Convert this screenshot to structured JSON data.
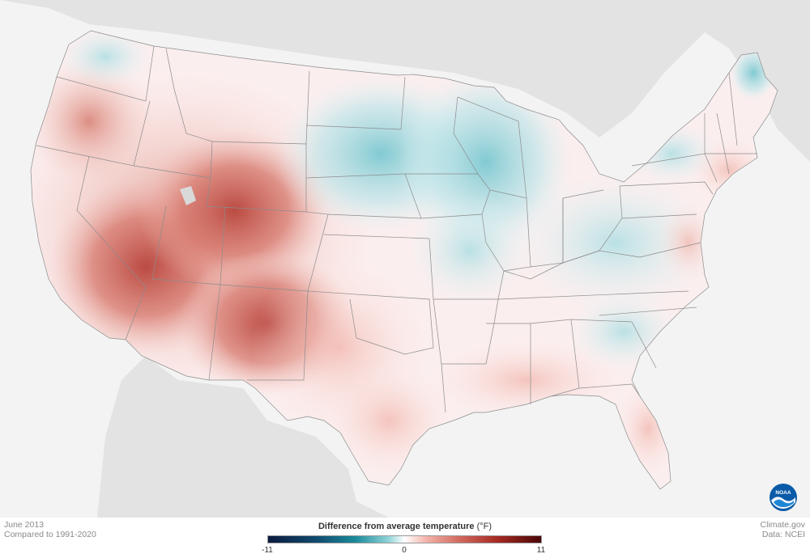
{
  "caption": {
    "date": "June 2013",
    "baseline": "Compared to 1991-2020",
    "source_site": "Climate.gov",
    "source_data": "Data: NCEI"
  },
  "legend": {
    "title_bold": "Difference from average temperature",
    "title_unit": "(°F)",
    "min_label": "-11",
    "mid_label": "0",
    "max_label": "11",
    "range": [
      -11,
      11
    ],
    "colors": {
      "cold_extreme": "#0b1b3f",
      "cool": "#1b8a9a",
      "neutral": "#ffffff",
      "warm": "#d26a5f",
      "hot_extreme": "#4a0707"
    }
  },
  "logo": {
    "icon": "noaa-logo-icon",
    "text": "NOAA"
  }
}
